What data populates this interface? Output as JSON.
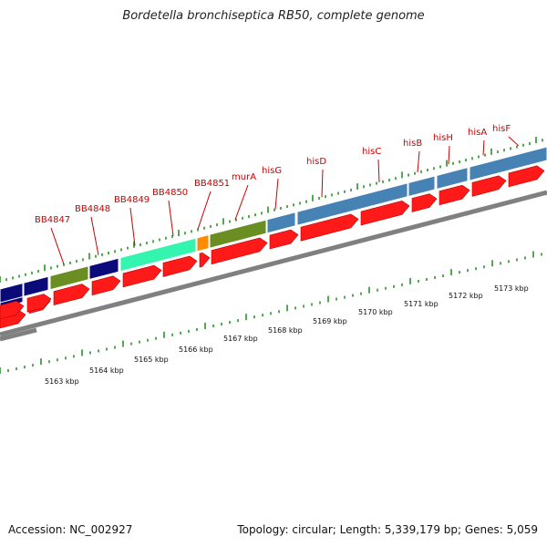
{
  "title": "Bordetella bronchiseptica RB50, complete genome",
  "footer": {
    "accession": "Accession: NC_002927",
    "summary": "Topology: circular; Length: 5,339,179 bp; Genes: 5,059"
  },
  "colors": {
    "gene_label": "#cc0000",
    "forward_arrow": "#ff1a1a",
    "track_navy": "#0a0a7a",
    "track_olive": "#6b8e23",
    "track_cyan": "#33f5b0",
    "track_orange": "#ff8c00",
    "track_steel": "#4682b4",
    "ticks": "#1a8a1a",
    "backbone": "#808080"
  },
  "gene_labels": [
    "BB4847",
    "BB4848",
    "BB4849",
    "BB4850",
    "BB4851",
    "murA",
    "hisG",
    "hisD",
    "hisC",
    "hisB",
    "hisH",
    "hisA",
    "hisF"
  ],
  "scale_labels": [
    "5163 kbp",
    "5164 kbp",
    "5165 kbp",
    "5166 kbp",
    "5167 kbp",
    "5168 kbp",
    "5169 kbp",
    "5170 kbp",
    "5171 kbp",
    "5172 kbp",
    "5173 kbp"
  ]
}
